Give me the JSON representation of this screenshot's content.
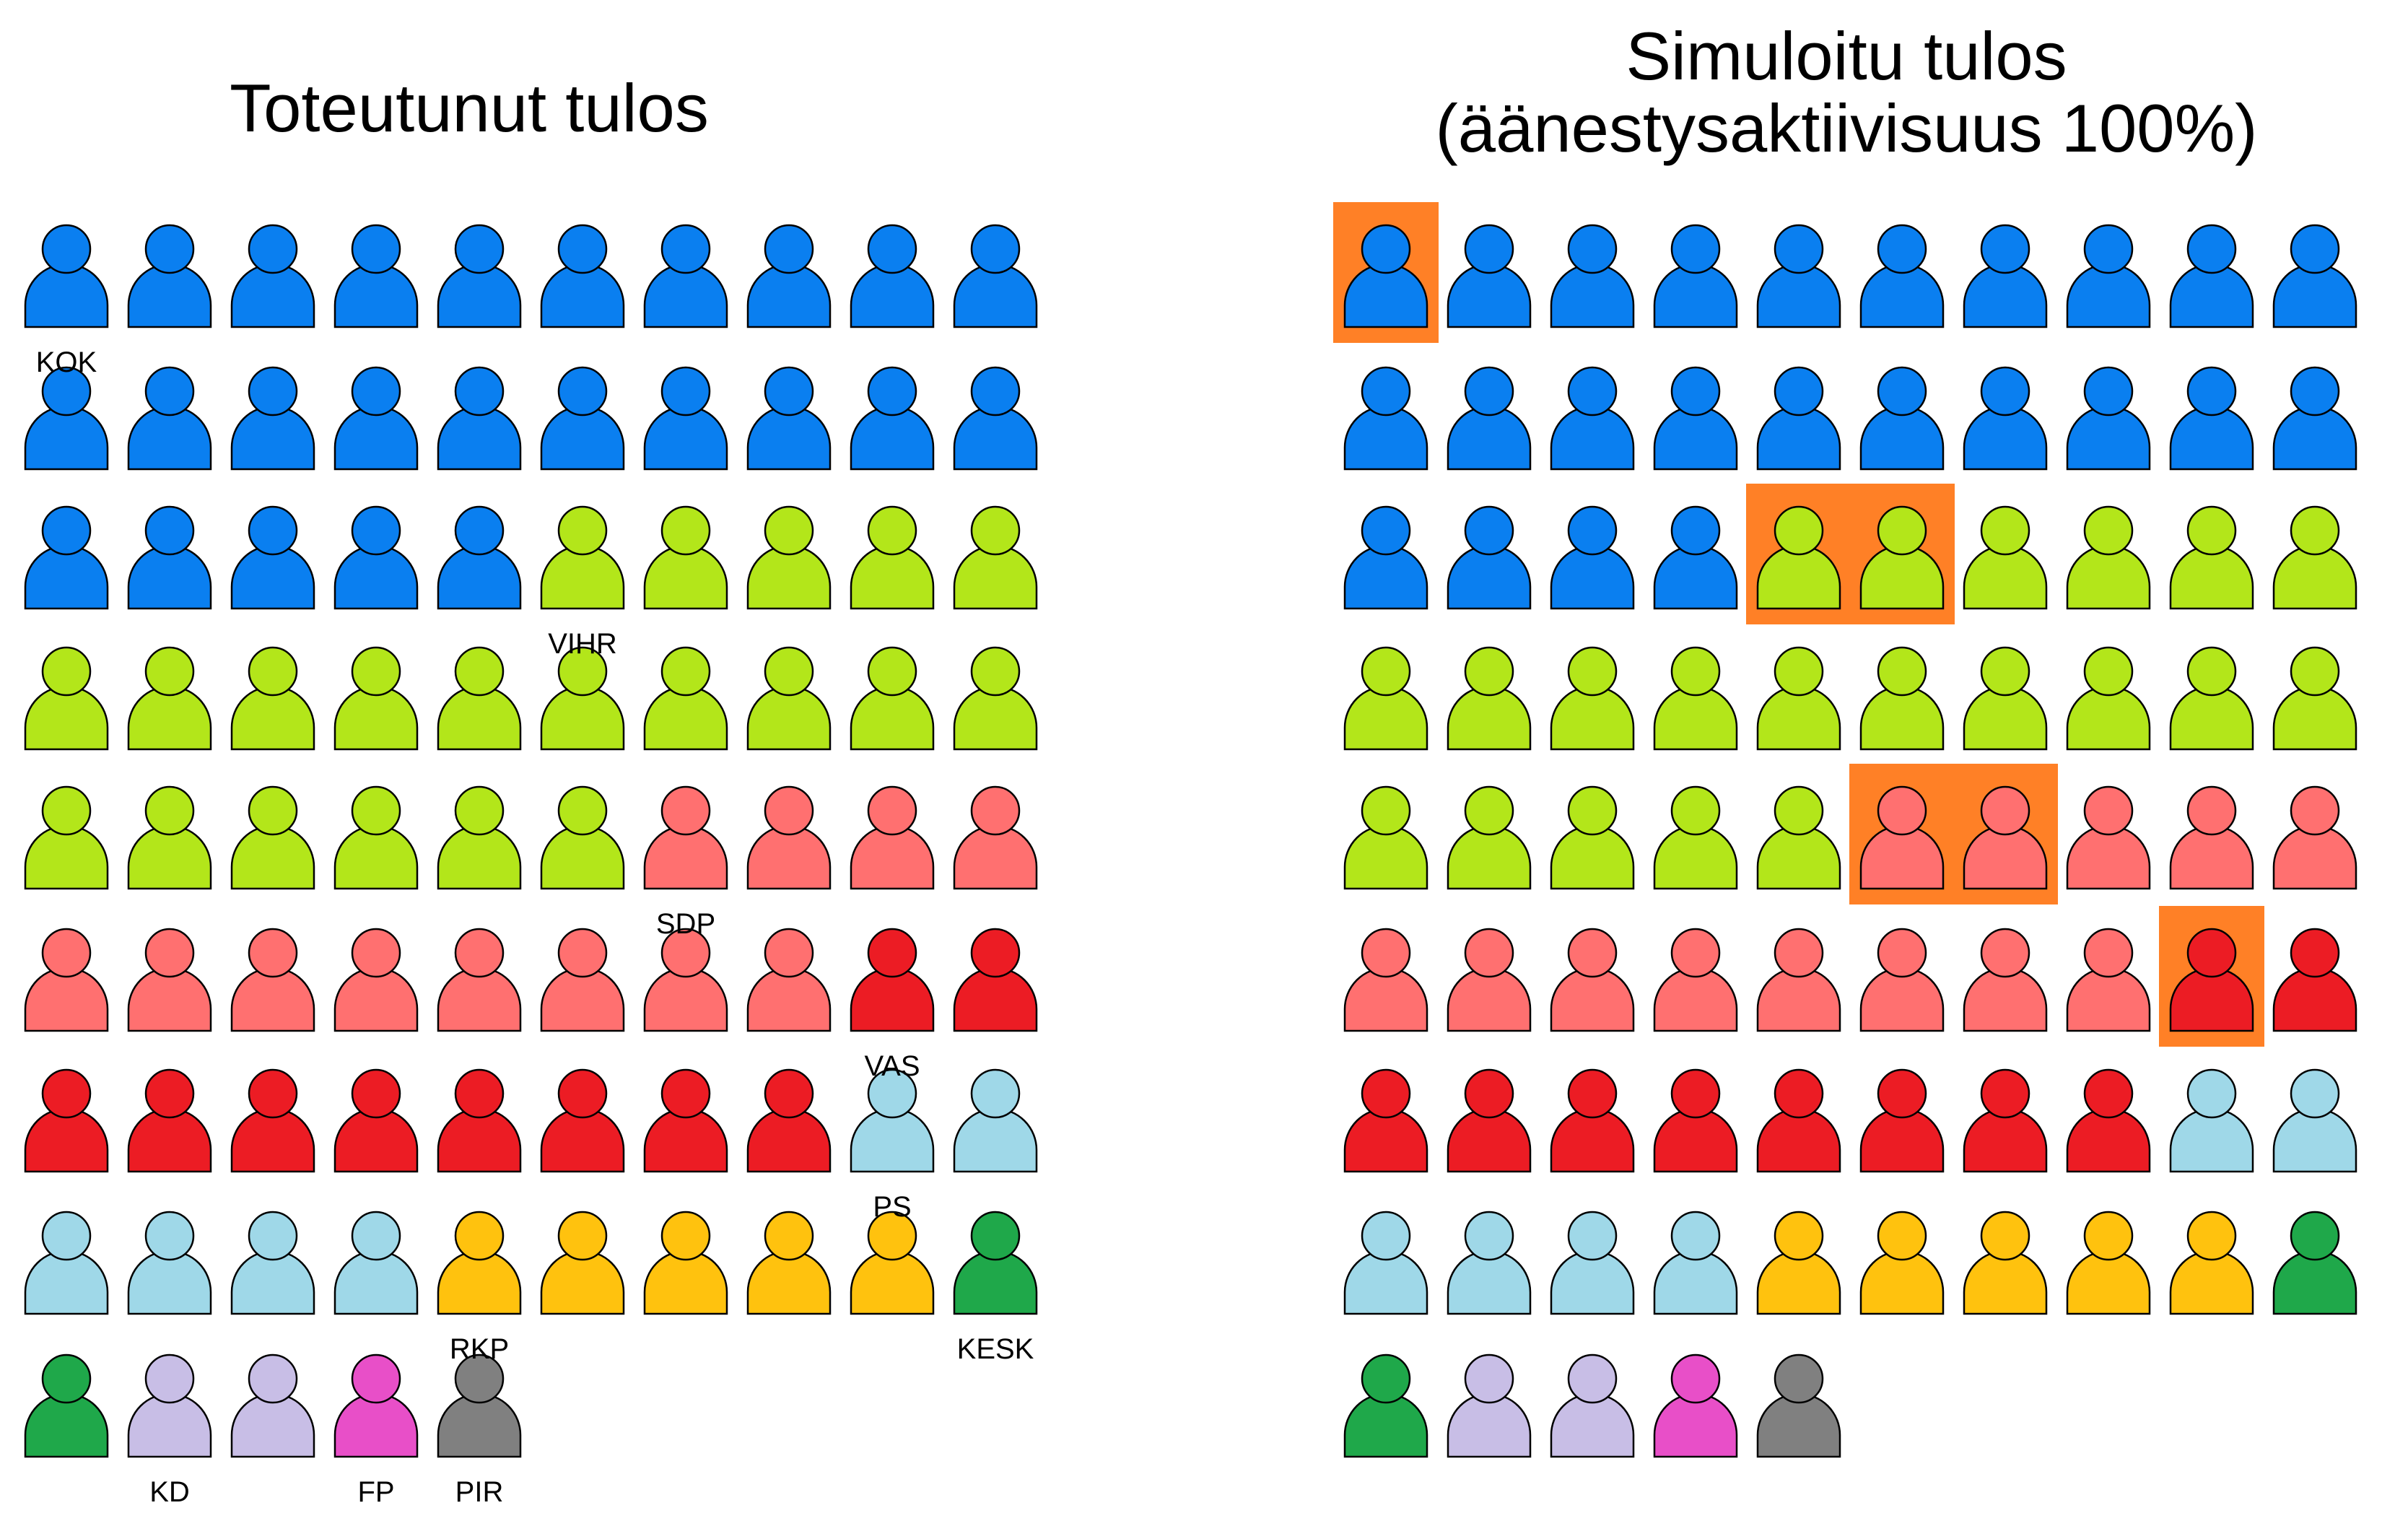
{
  "left_title": "Toteutunut tulos",
  "right_title_line1": "Simuloitu tulos",
  "right_title_line2": "(äänestysaktiivisuus 100%)",
  "colors": {
    "KOK": "#0A7FF0",
    "VIHR": "#B3E61A",
    "SDP": "#FF7070",
    "VAS": "#EC1C24",
    "PS": "#9FD8E8",
    "RKP": "#FFC20E",
    "KESK": "#1FA84A",
    "KD": "#C8BEE6",
    "FP": "#E84FC8",
    "PIR": "#808080",
    "highlight": "#FF8026"
  },
  "left_rows": [
    [
      "KOK",
      "KOK",
      "KOK",
      "KOK",
      "KOK",
      "KOK",
      "KOK",
      "KOK",
      "KOK",
      "KOK"
    ],
    [
      "KOK",
      "KOK",
      "KOK",
      "KOK",
      "KOK",
      "KOK",
      "KOK",
      "KOK",
      "KOK",
      "KOK"
    ],
    [
      "KOK",
      "KOK",
      "KOK",
      "KOK",
      "KOK",
      "VIHR",
      "VIHR",
      "VIHR",
      "VIHR",
      "VIHR"
    ],
    [
      "VIHR",
      "VIHR",
      "VIHR",
      "VIHR",
      "VIHR",
      "VIHR",
      "VIHR",
      "VIHR",
      "VIHR",
      "VIHR"
    ],
    [
      "VIHR",
      "VIHR",
      "VIHR",
      "VIHR",
      "VIHR",
      "VIHR",
      "SDP",
      "SDP",
      "SDP",
      "SDP"
    ],
    [
      "SDP",
      "SDP",
      "SDP",
      "SDP",
      "SDP",
      "SDP",
      "SDP",
      "SDP",
      "VAS",
      "VAS"
    ],
    [
      "VAS",
      "VAS",
      "VAS",
      "VAS",
      "VAS",
      "VAS",
      "VAS",
      "VAS",
      "PS",
      "PS"
    ],
    [
      "PS",
      "PS",
      "PS",
      "PS",
      "RKP",
      "RKP",
      "RKP",
      "RKP",
      "RKP",
      "KESK"
    ],
    [
      "KESK",
      "KD",
      "KD",
      "FP",
      "PIR"
    ]
  ],
  "right_rows": [
    [
      "KOK",
      "KOK",
      "KOK",
      "KOK",
      "KOK",
      "KOK",
      "KOK",
      "KOK",
      "KOK",
      "KOK"
    ],
    [
      "KOK",
      "KOK",
      "KOK",
      "KOK",
      "KOK",
      "KOK",
      "KOK",
      "KOK",
      "KOK",
      "KOK"
    ],
    [
      "KOK",
      "KOK",
      "KOK",
      "KOK",
      "VIHR",
      "VIHR",
      "VIHR",
      "VIHR",
      "VIHR",
      "VIHR"
    ],
    [
      "VIHR",
      "VIHR",
      "VIHR",
      "VIHR",
      "VIHR",
      "VIHR",
      "VIHR",
      "VIHR",
      "VIHR",
      "VIHR"
    ],
    [
      "VIHR",
      "VIHR",
      "VIHR",
      "VIHR",
      "VIHR",
      "SDP",
      "SDP",
      "SDP",
      "SDP",
      "SDP"
    ],
    [
      "SDP",
      "SDP",
      "SDP",
      "SDP",
      "SDP",
      "SDP",
      "SDP",
      "SDP",
      "VAS",
      "VAS"
    ],
    [
      "VAS",
      "VAS",
      "VAS",
      "VAS",
      "VAS",
      "VAS",
      "VAS",
      "VAS",
      "PS",
      "PS"
    ],
    [
      "PS",
      "PS",
      "PS",
      "PS",
      "RKP",
      "RKP",
      "RKP",
      "RKP",
      "RKP",
      "KESK"
    ],
    [
      "KESK",
      "KD",
      "KD",
      "FP",
      "PIR"
    ]
  ],
  "right_highlights": [
    {
      "row": 0,
      "start": 0,
      "count": 1
    },
    {
      "row": 2,
      "start": 4,
      "count": 2
    },
    {
      "row": 4,
      "start": 5,
      "count": 2
    },
    {
      "row": 5,
      "start": 8,
      "count": 1
    }
  ],
  "left_labels": [
    {
      "text": "KOK",
      "row": 0,
      "col": 0
    },
    {
      "text": "VIHR",
      "row": 2,
      "col": 5
    },
    {
      "text": "SDP",
      "row": 4,
      "col": 6
    },
    {
      "text": "VAS",
      "row": 5,
      "col": 8
    },
    {
      "text": "PS",
      "row": 6,
      "col": 8
    },
    {
      "text": "RKP",
      "row": 7,
      "col": 4
    },
    {
      "text": "KESK",
      "row": 7,
      "col": 9
    },
    {
      "text": "KD",
      "row": 8,
      "col": 1
    },
    {
      "text": "FP",
      "row": 8,
      "col": 3
    },
    {
      "text": "PIR",
      "row": 8,
      "col": 4
    }
  ]
}
